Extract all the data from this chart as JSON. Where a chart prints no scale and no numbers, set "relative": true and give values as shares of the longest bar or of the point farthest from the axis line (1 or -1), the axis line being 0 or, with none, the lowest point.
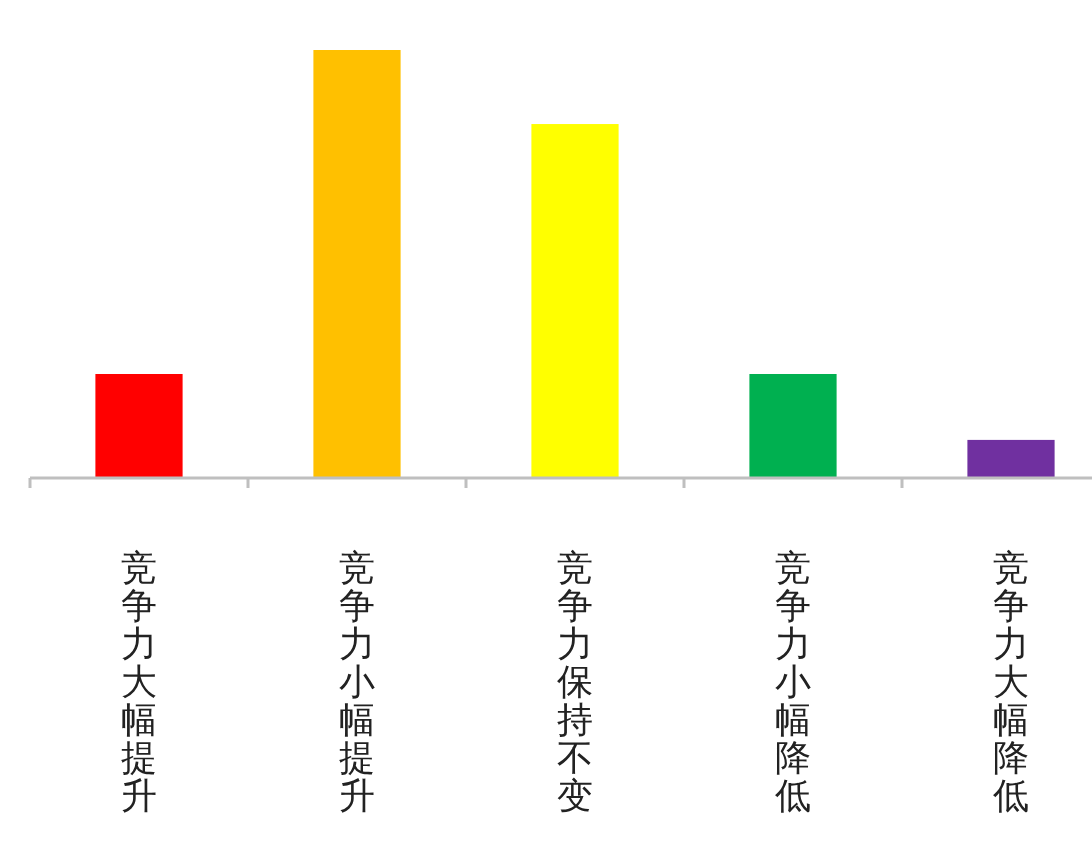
{
  "chart_data": {
    "type": "bar",
    "relative": true,
    "categories": [
      "竞争力大幅提升",
      "竞争力小幅提升",
      "竞争力保持不变",
      "竞争力小幅降低",
      "竞争力大幅降低"
    ],
    "values": [
      0.243,
      1,
      0.827,
      0.243,
      0.089
    ],
    "colors": [
      "#ff0000",
      "#ffc000",
      "#ffff00",
      "#00b050",
      "#7030a0"
    ]
  }
}
